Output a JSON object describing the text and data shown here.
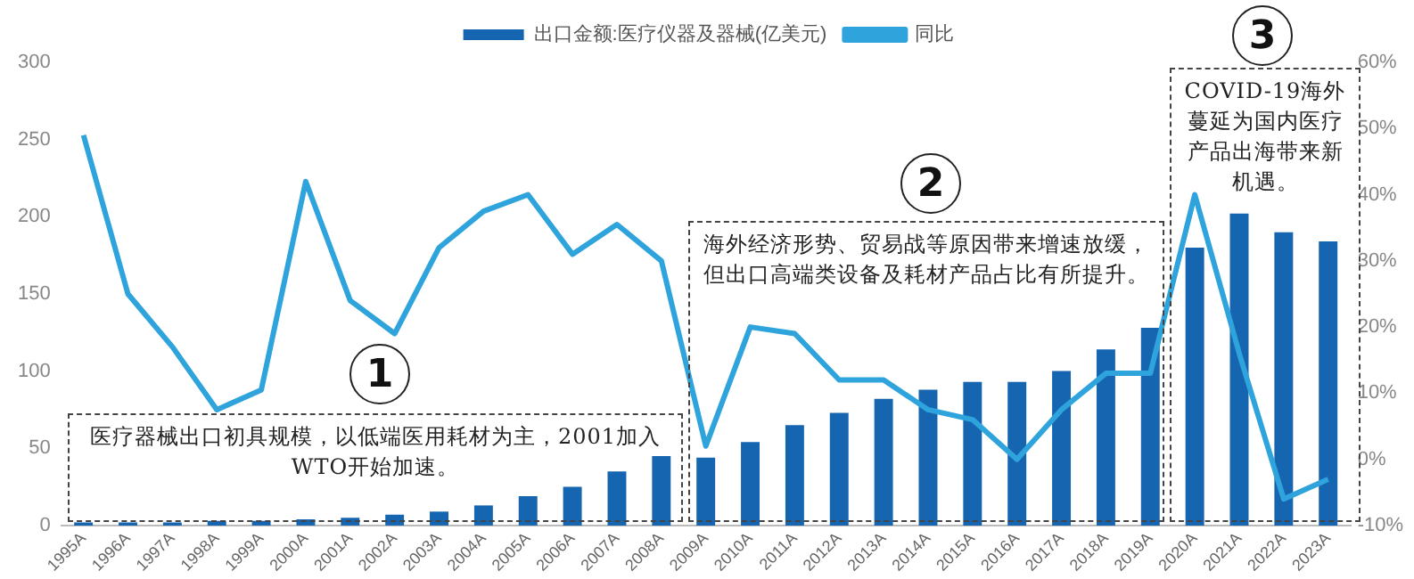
{
  "chart_data": {
    "type": "bar",
    "categories": [
      "1995A",
      "1996A",
      "1997A",
      "1998A",
      "1999A",
      "2000A",
      "2001A",
      "2002A",
      "2003A",
      "2004A",
      "2005A",
      "2006A",
      "2007A",
      "2008A",
      "2009A",
      "2010A",
      "2011A",
      "2012A",
      "2013A",
      "2014A",
      "2015A",
      "2016A",
      "2017A",
      "2018A",
      "2019A",
      "2020A",
      "2021A",
      "2022A",
      "2023A"
    ],
    "series": [
      {
        "name": "出口金额:医疗仪器及器械(亿美元)",
        "color": "#1565b0",
        "values": [
          2,
          2,
          2,
          3,
          3,
          4,
          5,
          7,
          9,
          13,
          19,
          25,
          35,
          45,
          44,
          54,
          65,
          73,
          82,
          88,
          93,
          93,
          100,
          114,
          128,
          180,
          202,
          190,
          184
        ]
      },
      {
        "name": "同比",
        "type": "line",
        "axis": "y2",
        "color": "#2ea3dc",
        "values": [
          49,
          25,
          17,
          7.5,
          10.5,
          42,
          24,
          19,
          32,
          37.5,
          40,
          31,
          35.5,
          30,
          2,
          20,
          19,
          12,
          12,
          7.5,
          6,
          0,
          7.5,
          13,
          13,
          40,
          16,
          -6,
          -3
        ]
      }
    ],
    "ylim": [
      0,
      300
    ],
    "yticks": [
      0,
      50,
      100,
      150,
      200,
      250,
      300
    ],
    "y2lim": [
      -10,
      60
    ],
    "y2ticks": [
      {
        "value": -10,
        "label": "-10%"
      },
      {
        "value": 0,
        "label": "0%"
      },
      {
        "value": 10,
        "label": "10%"
      },
      {
        "value": 20,
        "label": "20%"
      },
      {
        "value": 30,
        "label": "30%"
      },
      {
        "value": 40,
        "label": "40%"
      },
      {
        "value": 50,
        "label": "50%"
      },
      {
        "value": 60,
        "label": "60%"
      }
    ],
    "grid": false,
    "legend": "top",
    "marker": "none",
    "annotations": [
      "1",
      "医疗器械出口初具规模，以低端医用耗材为主，2001加入WTO开始加速。",
      "2",
      "海外经济形势、贸易战等原因带来增速放缓，但出口高端类设备及耗材产品占比有所提升。",
      "3",
      "COVID-19海外蔓延为国内医疗产品出海带来新机遇。"
    ]
  }
}
